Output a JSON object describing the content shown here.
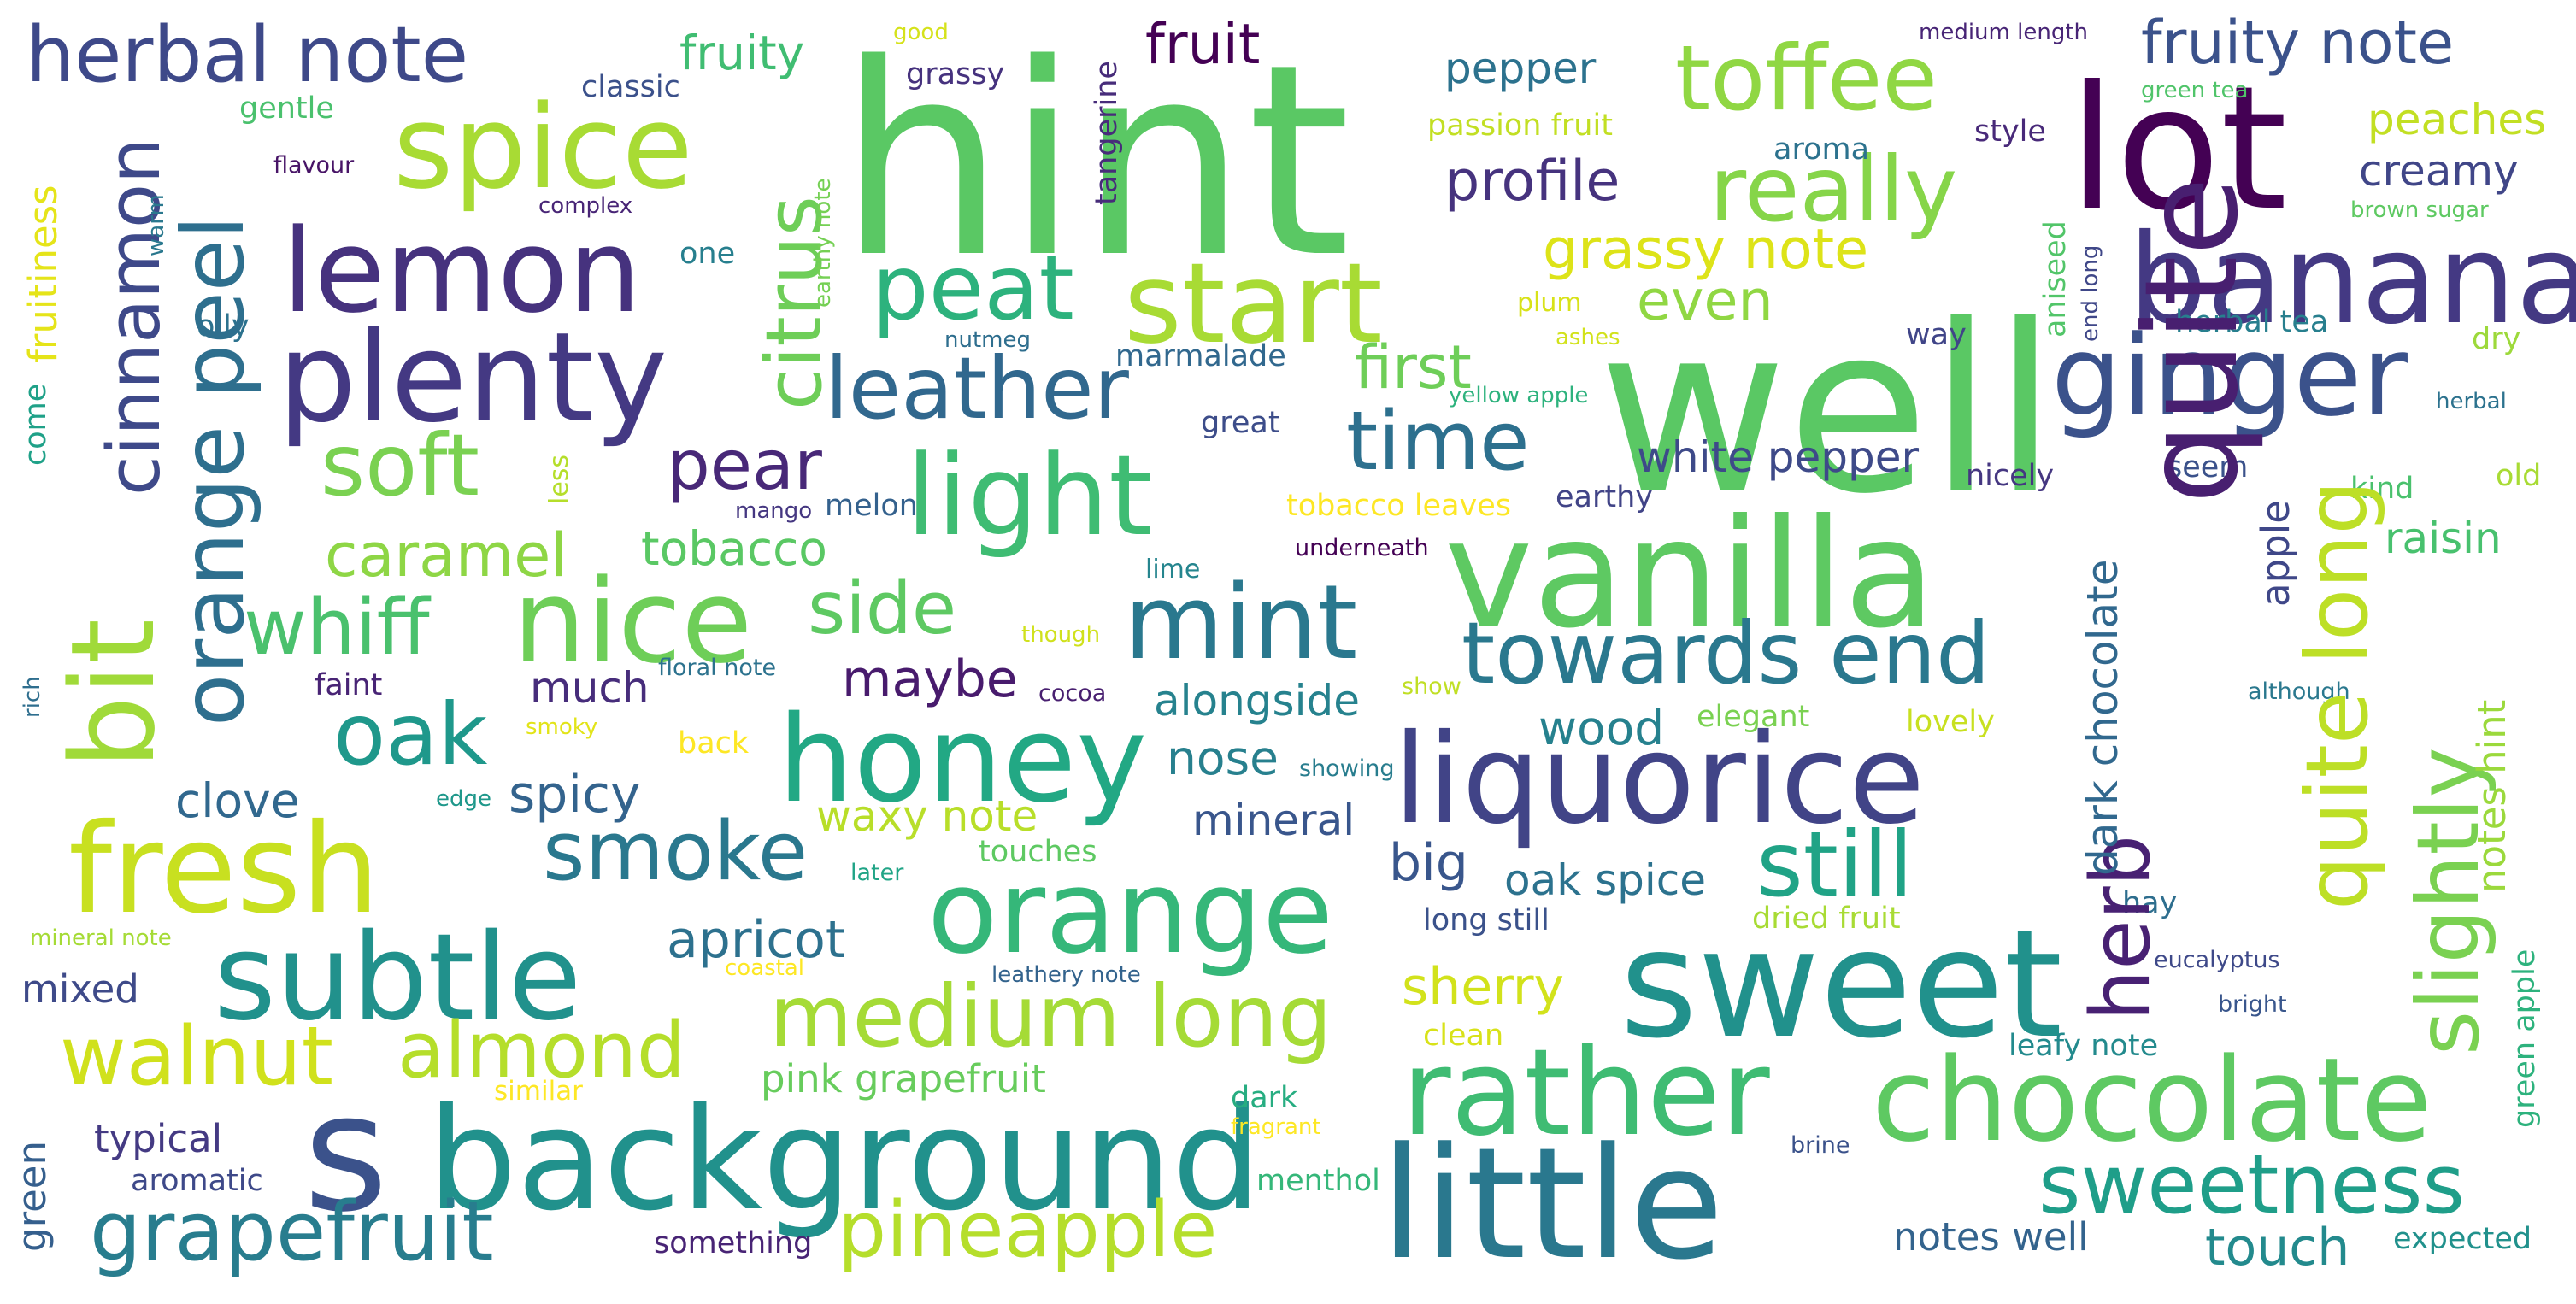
{
  "words": [
    {
      "text": "hint",
      "color": "#5ac864"
    },
    {
      "text": "well",
      "color": "#5ac864"
    },
    {
      "text": "lot",
      "color": "#440154"
    },
    {
      "text": "banana",
      "color": "#443983"
    },
    {
      "text": "ginger",
      "color": "#3b528b"
    },
    {
      "text": "vanilla",
      "color": "#5ec962"
    },
    {
      "text": "quite",
      "color": "#481f70"
    },
    {
      "text": "sweet",
      "color": "#21918c"
    },
    {
      "text": "liquorice",
      "color": "#414487"
    },
    {
      "text": "little",
      "color": "#2a788e"
    },
    {
      "text": "background",
      "color": "#21918c"
    },
    {
      "text": "s",
      "color": "#3b528b"
    },
    {
      "text": "chocolate",
      "color": "#5ec962"
    },
    {
      "text": "rather",
      "color": "#3fbc73"
    },
    {
      "text": "orange",
      "color": "#35b779"
    },
    {
      "text": "plenty",
      "color": "#443983"
    },
    {
      "text": "lemon",
      "color": "#46327e"
    },
    {
      "text": "spice",
      "color": "#a8db34"
    },
    {
      "text": "fresh",
      "color": "#c8e020"
    },
    {
      "text": "subtle",
      "color": "#21918c"
    },
    {
      "text": "honey",
      "color": "#22a884"
    },
    {
      "text": "nice",
      "color": "#6ece58"
    },
    {
      "text": "bit",
      "color": "#a0da39"
    },
    {
      "text": "orange peel",
      "color": "#2e6f8e"
    },
    {
      "text": "cinnamon",
      "color": "#3e4989"
    },
    {
      "text": "start",
      "color": "#a8db34"
    },
    {
      "text": "light",
      "color": "#3fbc73"
    },
    {
      "text": "mint",
      "color": "#2a788e"
    },
    {
      "text": "toffee",
      "color": "#90d743"
    },
    {
      "text": "really",
      "color": "#86d549"
    },
    {
      "text": "peat",
      "color": "#2db27d"
    },
    {
      "text": "leather",
      "color": "#31688e"
    },
    {
      "text": "time",
      "color": "#2d708e"
    },
    {
      "text": "towards end",
      "color": "#2a788e"
    },
    {
      "text": "still",
      "color": "#20a386"
    },
    {
      "text": "quite long",
      "color": "#bddf26"
    },
    {
      "text": "slightly",
      "color": "#7ad151"
    },
    {
      "text": "herb",
      "color": "#482173"
    },
    {
      "text": "sweetness",
      "color": "#1f9e89"
    },
    {
      "text": "medium long",
      "color": "#a5db36"
    },
    {
      "text": "walnut",
      "color": "#d0e11c"
    },
    {
      "text": "almond",
      "color": "#b5de2b"
    },
    {
      "text": "grapefruit",
      "color": "#287d8e"
    },
    {
      "text": "pineapple",
      "color": "#b5de2b"
    },
    {
      "text": "soft",
      "color": "#7ad151"
    },
    {
      "text": "whiff",
      "color": "#4ac16d"
    },
    {
      "text": "oak",
      "color": "#1f988b"
    },
    {
      "text": "smoke",
      "color": "#2a788e"
    },
    {
      "text": "caramel",
      "color": "#8ed645"
    },
    {
      "text": "citrus",
      "color": "#6ece58"
    },
    {
      "text": "herbal note",
      "color": "#3e4989"
    },
    {
      "text": "pear",
      "color": "#482878"
    },
    {
      "text": "side",
      "color": "#5ec962"
    },
    {
      "text": "dark chocolate",
      "color": "#31688e"
    },
    {
      "text": "fruity note",
      "color": "#3b528b"
    },
    {
      "text": "profile",
      "color": "#46337e"
    },
    {
      "text": "grassy note",
      "color": "#dde318"
    },
    {
      "text": "even",
      "color": "#90d743"
    },
    {
      "text": "first",
      "color": "#6ece58"
    },
    {
      "text": "white pepper",
      "color": "#3e4a89"
    },
    {
      "text": "fruit",
      "color": "#440154"
    },
    {
      "text": "fruity",
      "color": "#40bd72"
    },
    {
      "text": "pepper",
      "color": "#2c728e"
    },
    {
      "text": "creamy",
      "color": "#404688"
    },
    {
      "text": "peaches",
      "color": "#c2df23"
    },
    {
      "text": "tobacco",
      "color": "#5ac864"
    },
    {
      "text": "maybe",
      "color": "#481b6d"
    },
    {
      "text": "alongside",
      "color": "#26828e"
    },
    {
      "text": "nose",
      "color": "#27808e"
    },
    {
      "text": "much",
      "color": "#472d7b"
    },
    {
      "text": "spicy",
      "color": "#33638d"
    },
    {
      "text": "clove",
      "color": "#31688e"
    },
    {
      "text": "apricot",
      "color": "#2d718e"
    },
    {
      "text": "waxy note",
      "color": "#b8de29"
    },
    {
      "text": "mineral",
      "color": "#39568c"
    },
    {
      "text": "big",
      "color": "#39568c"
    },
    {
      "text": "oak spice",
      "color": "#2c728e"
    },
    {
      "text": "wood",
      "color": "#26818e"
    },
    {
      "text": "raisin",
      "color": "#48c16e"
    },
    {
      "text": "sherry",
      "color": "#d2e21b"
    },
    {
      "text": "notes hint",
      "color": "#9bd93c"
    },
    {
      "text": "apple",
      "color": "#3f4788"
    },
    {
      "text": "fruitiness",
      "color": "#e5e419"
    },
    {
      "text": "pink grapefruit",
      "color": "#67cc5c"
    },
    {
      "text": "mixed",
      "color": "#3e4a89"
    },
    {
      "text": "typical",
      "color": "#443a83"
    },
    {
      "text": "green",
      "color": "#355f8d"
    },
    {
      "text": "touch",
      "color": "#238a8d"
    },
    {
      "text": "notes well",
      "color": "#33638d"
    },
    {
      "text": "medium length",
      "color": "#482576"
    },
    {
      "text": "good",
      "color": "#d5e21a"
    },
    {
      "text": "classic",
      "color": "#3b518b"
    },
    {
      "text": "gentle",
      "color": "#4ac16d"
    },
    {
      "text": "flavour",
      "color": "#481467"
    },
    {
      "text": "complex",
      "color": "#482576"
    },
    {
      "text": "warm",
      "color": "#2a788e"
    },
    {
      "text": "oily",
      "color": "#2c728e"
    },
    {
      "text": "come",
      "color": "#1fa188"
    },
    {
      "text": "one",
      "color": "#277f8e"
    },
    {
      "text": "nutmeg",
      "color": "#2e6e8e"
    },
    {
      "text": "grassy",
      "color": "#46327e"
    },
    {
      "text": "tangerine",
      "color": "#472c7a"
    },
    {
      "text": "earthy note",
      "color": "#75d054"
    },
    {
      "text": "passion fruit",
      "color": "#c2df23"
    },
    {
      "text": "aroma",
      "color": "#2c728e"
    },
    {
      "text": "style",
      "color": "#482979"
    },
    {
      "text": "plum",
      "color": "#d8e219"
    },
    {
      "text": "ashes",
      "color": "#d2e21b"
    },
    {
      "text": "marmalade",
      "color": "#31688e"
    },
    {
      "text": "yellow apple",
      "color": "#2db27d"
    },
    {
      "text": "way",
      "color": "#404588"
    },
    {
      "text": "aniseed",
      "color": "#52c569"
    },
    {
      "text": "end long",
      "color": "#3f4788"
    },
    {
      "text": "herbal tea",
      "color": "#277f8e"
    },
    {
      "text": "green tea",
      "color": "#50c46a"
    },
    {
      "text": "brown sugar",
      "color": "#5ec962"
    },
    {
      "text": "dry",
      "color": "#9dd93b"
    },
    {
      "text": "herbal",
      "color": "#2c728e"
    },
    {
      "text": "great",
      "color": "#3d4d8a"
    },
    {
      "text": "less",
      "color": "#b5de2b"
    },
    {
      "text": "mango",
      "color": "#453781"
    },
    {
      "text": "melon",
      "color": "#34618d"
    },
    {
      "text": "tobacco leaves",
      "color": "#fde725"
    },
    {
      "text": "earthy",
      "color": "#414487"
    },
    {
      "text": "underneath",
      "color": "#440154"
    },
    {
      "text": "lime",
      "color": "#25858e"
    },
    {
      "text": "nicely",
      "color": "#453781"
    },
    {
      "text": "seem",
      "color": "#3b528b"
    },
    {
      "text": "kind",
      "color": "#4ac16d"
    },
    {
      "text": "old",
      "color": "#a8db34"
    },
    {
      "text": "though",
      "color": "#d0e11c"
    },
    {
      "text": "floral note",
      "color": "#2c728e"
    },
    {
      "text": "faint",
      "color": "#482475"
    },
    {
      "text": "cocoa",
      "color": "#481f70"
    },
    {
      "text": "show",
      "color": "#c0df25"
    },
    {
      "text": "elegant",
      "color": "#7ad151"
    },
    {
      "text": "lovely",
      "color": "#c8e020"
    },
    {
      "text": "although",
      "color": "#2a788e"
    },
    {
      "text": "rich",
      "color": "#2e6e8e"
    },
    {
      "text": "smoky",
      "color": "#e2e418"
    },
    {
      "text": "back",
      "color": "#fde725"
    },
    {
      "text": "showing",
      "color": "#287d8e"
    },
    {
      "text": "edge",
      "color": "#1f988b"
    },
    {
      "text": "touches",
      "color": "#5ec962"
    },
    {
      "text": "later",
      "color": "#20a486"
    },
    {
      "text": "long still",
      "color": "#3b528b"
    },
    {
      "text": "dried fruit",
      "color": "#a8db34"
    },
    {
      "text": "hay",
      "color": "#2e6e8e"
    },
    {
      "text": "mineral note",
      "color": "#a5db36"
    },
    {
      "text": "coastal",
      "color": "#fde725"
    },
    {
      "text": "leathery note",
      "color": "#33638d"
    },
    {
      "text": "eucalyptus",
      "color": "#3e4989"
    },
    {
      "text": "bright",
      "color": "#39568c"
    },
    {
      "text": "green apple",
      "color": "#2db27d"
    },
    {
      "text": "clean",
      "color": "#d8e219"
    },
    {
      "text": "similar",
      "color": "#fde725"
    },
    {
      "text": "leafy note",
      "color": "#238a8d"
    },
    {
      "text": "dark",
      "color": "#27ad81"
    },
    {
      "text": "fragrant",
      "color": "#fde725"
    },
    {
      "text": "brine",
      "color": "#3b528b"
    },
    {
      "text": "aromatic",
      "color": "#3e4989"
    },
    {
      "text": "menthol",
      "color": "#35b779"
    },
    {
      "text": "something",
      "color": "#482475"
    },
    {
      "text": "expected",
      "color": "#21918c"
    }
  ]
}
